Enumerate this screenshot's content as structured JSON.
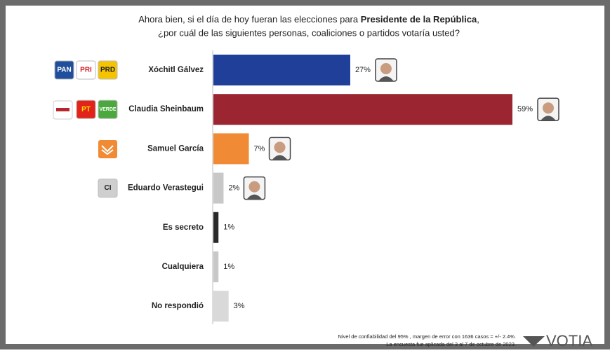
{
  "chart_data": {
    "type": "hbar",
    "title": [
      "Ahora bien, si el día de hoy fueran las elecciones para ",
      "Presidente de la República",
      ",",
      "¿por cuál de las siguientes personas, coaliciones o partidos votaría usted?"
    ],
    "categories": [
      "Xóchitl Gálvez",
      "Claudia Sheinbaum",
      "Samuel García",
      "Eduardo Verastegui",
      "Es secreto",
      "Cualquiera",
      "No respondió"
    ],
    "values": [
      27,
      59,
      7,
      2,
      1,
      1,
      3
    ],
    "value_labels": [
      "27%",
      "59%",
      "7%",
      "2%",
      "1%",
      "1%",
      "3%"
    ],
    "colors": [
      "#1f3f99",
      "#9b2530",
      "#f08a34",
      "#c8c8c8",
      "#2a2a2a",
      "#c8c8c8",
      "#d9d9d9"
    ],
    "category_logos": [
      [
        {
          "label": "PAN",
          "color": "#1f4e9c",
          "text_color": "#ffffff"
        },
        {
          "label": "PRI",
          "color": "#ffffff",
          "text_color": "#d2232a"
        },
        {
          "label": "PRD",
          "color": "#f5c400",
          "text_color": "#222222"
        }
      ],
      [
        {
          "label": "PT",
          "color": "#e2231a",
          "text_color": "#ffe000"
        },
        {
          "label": "VERDE",
          "color": "#4aa83d",
          "text_color": "#ffffff"
        }
      ],
      [],
      [
        {
          "label": "CI",
          "color": "#cfcfcf",
          "text_color": "#222222"
        }
      ],
      [],
      [],
      []
    ],
    "footnotes": [
      "Nivel de confiabilidad del 95% , margen de error con 1636 casos = +/- 2.4%.",
      "La encuesta fue aplicada del 3 al 7 de octubre de 2023."
    ],
    "brand": "VOTIA"
  }
}
